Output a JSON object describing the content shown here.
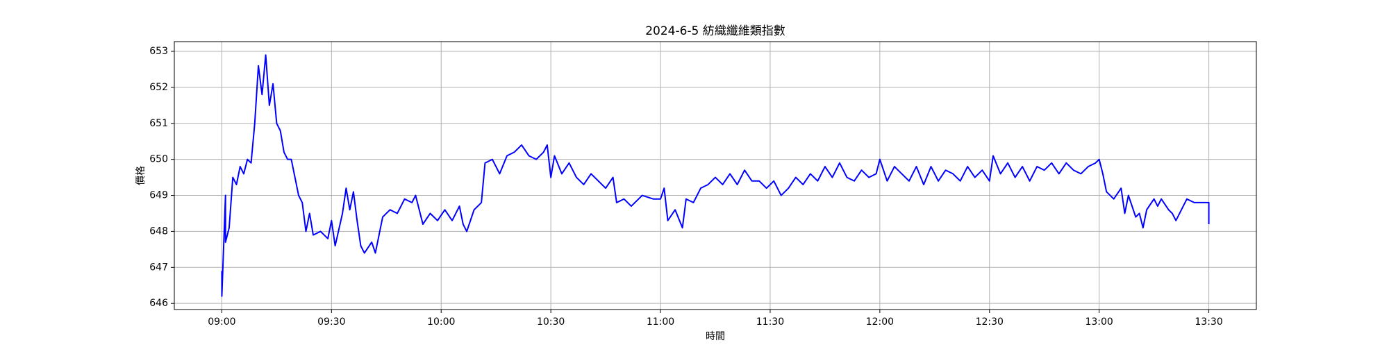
{
  "chart_data": {
    "type": "line",
    "title": "2024-6-5 紡織纖維類指數",
    "x_label": "時間",
    "y_label": "價格",
    "color": "#0000ff",
    "grid": true,
    "xlim": [
      "08:47",
      "13:43"
    ],
    "ylim": [
      645.83,
      653.27
    ],
    "xticks": [
      "09:00",
      "09:30",
      "10:00",
      "10:30",
      "11:00",
      "11:30",
      "12:00",
      "12:30",
      "13:00",
      "13:30"
    ],
    "yticks": [
      646,
      647,
      648,
      649,
      650,
      651,
      652,
      653
    ],
    "x": [
      "09:00",
      "09:00",
      "09:01",
      "09:01",
      "09:02",
      "09:03",
      "09:04",
      "09:05",
      "09:06",
      "09:07",
      "09:08",
      "09:09",
      "09:10",
      "09:11",
      "09:12",
      "09:13",
      "09:14",
      "09:15",
      "09:16",
      "09:17",
      "09:18",
      "09:19",
      "09:20",
      "09:21",
      "09:22",
      "09:23",
      "09:24",
      "09:25",
      "09:27",
      "09:29",
      "09:30",
      "09:31",
      "09:33",
      "09:34",
      "09:35",
      "09:36",
      "09:37",
      "09:38",
      "09:39",
      "09:41",
      "09:42",
      "09:43",
      "09:44",
      "09:46",
      "09:48",
      "09:50",
      "09:52",
      "09:53",
      "09:55",
      "09:57",
      "09:59",
      "10:01",
      "10:03",
      "10:05",
      "10:06",
      "10:07",
      "10:09",
      "10:11",
      "10:12",
      "10:14",
      "10:16",
      "10:18",
      "10:20",
      "10:22",
      "10:24",
      "10:26",
      "10:28",
      "10:29",
      "10:30",
      "10:31",
      "10:33",
      "10:35",
      "10:37",
      "10:39",
      "10:41",
      "10:43",
      "10:45",
      "10:47",
      "10:48",
      "10:50",
      "10:52",
      "10:55",
      "10:58",
      "11:00",
      "11:01",
      "11:02",
      "11:04",
      "11:06",
      "11:07",
      "11:09",
      "11:11",
      "11:13",
      "11:15",
      "11:17",
      "11:19",
      "11:21",
      "11:23",
      "11:25",
      "11:27",
      "11:29",
      "11:31",
      "11:33",
      "11:35",
      "11:37",
      "11:39",
      "11:41",
      "11:43",
      "11:45",
      "11:47",
      "11:49",
      "11:51",
      "11:53",
      "11:55",
      "11:57",
      "11:59",
      "12:00",
      "12:02",
      "12:04",
      "12:06",
      "12:08",
      "12:10",
      "12:12",
      "12:14",
      "12:16",
      "12:18",
      "12:20",
      "12:22",
      "12:24",
      "12:26",
      "12:28",
      "12:30",
      "12:31",
      "12:33",
      "12:35",
      "12:37",
      "12:39",
      "12:41",
      "12:43",
      "12:45",
      "12:47",
      "12:49",
      "12:51",
      "12:53",
      "12:55",
      "12:57",
      "12:59",
      "13:00",
      "13:01",
      "13:02",
      "13:04",
      "13:06",
      "13:07",
      "13:08",
      "13:09",
      "13:10",
      "13:11",
      "13:12",
      "13:13",
      "13:15",
      "13:16",
      "13:17",
      "13:19",
      "13:20",
      "13:21",
      "13:22",
      "13:23",
      "13:24",
      "13:26",
      "13:30",
      "13:30"
    ],
    "values": [
      646.9,
      646.2,
      649.0,
      647.7,
      648.1,
      649.5,
      649.3,
      649.8,
      649.6,
      650.0,
      649.9,
      651.0,
      652.6,
      651.8,
      652.9,
      651.5,
      652.1,
      651.0,
      650.8,
      650.2,
      650.0,
      650.0,
      649.5,
      649.0,
      648.8,
      648.0,
      648.5,
      647.9,
      648.0,
      647.8,
      648.3,
      647.6,
      648.5,
      649.2,
      648.6,
      649.1,
      648.3,
      647.6,
      647.4,
      647.7,
      647.4,
      647.9,
      648.4,
      648.6,
      648.5,
      648.9,
      648.8,
      649.0,
      648.2,
      648.5,
      648.3,
      648.6,
      648.3,
      648.7,
      648.2,
      648.0,
      648.6,
      648.8,
      649.9,
      650.0,
      649.6,
      650.1,
      650.2,
      650.4,
      650.1,
      650.0,
      650.2,
      650.4,
      649.5,
      650.1,
      649.6,
      649.9,
      649.5,
      649.3,
      649.6,
      649.4,
      649.2,
      649.5,
      648.8,
      648.9,
      648.7,
      649.0,
      648.9,
      648.9,
      649.2,
      648.3,
      648.6,
      648.1,
      648.9,
      648.8,
      649.2,
      649.3,
      649.5,
      649.3,
      649.6,
      649.3,
      649.7,
      649.4,
      649.4,
      649.2,
      649.4,
      649.0,
      649.2,
      649.5,
      649.3,
      649.6,
      649.4,
      649.8,
      649.5,
      649.9,
      649.5,
      649.4,
      649.7,
      649.5,
      649.6,
      650.0,
      649.4,
      649.8,
      649.6,
      649.4,
      649.8,
      649.3,
      649.8,
      649.4,
      649.7,
      649.6,
      649.4,
      649.8,
      649.5,
      649.7,
      649.4,
      650.1,
      649.6,
      649.9,
      649.5,
      649.8,
      649.4,
      649.8,
      649.7,
      649.9,
      649.6,
      649.9,
      649.7,
      649.6,
      649.8,
      649.9,
      650.0,
      649.6,
      649.1,
      648.9,
      649.2,
      648.5,
      649.0,
      648.7,
      648.4,
      648.5,
      648.1,
      648.6,
      648.9,
      648.7,
      648.9,
      648.6,
      648.5,
      648.3,
      648.5,
      648.7,
      648.9,
      648.8,
      648.8,
      648.2
    ]
  }
}
